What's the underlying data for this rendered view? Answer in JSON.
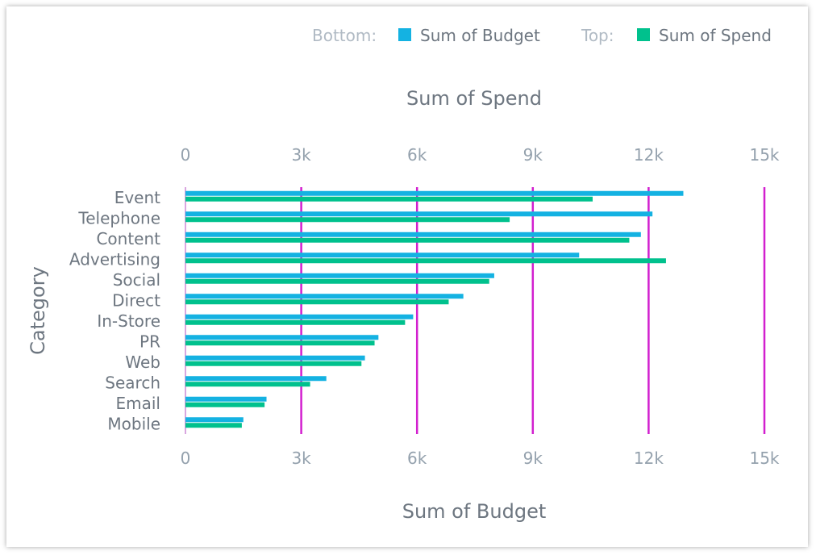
{
  "chart_data": {
    "type": "bar",
    "orientation": "horizontal",
    "categories": [
      "Event",
      "Telephone",
      "Content",
      "Advertising",
      "Social",
      "Direct",
      "In-Store",
      "PR",
      "Web",
      "Search",
      "Email",
      "Mobile"
    ],
    "series": [
      {
        "name": "Sum of Budget",
        "axis": "bottom",
        "color": "#14b2e2",
        "values": [
          12900,
          12100,
          11800,
          10200,
          8000,
          7200,
          5900,
          5000,
          4650,
          3650,
          2100,
          1500
        ]
      },
      {
        "name": "Sum of Spend",
        "axis": "top",
        "color": "#00c18d",
        "values": [
          10550,
          8400,
          11500,
          12450,
          7870,
          6820,
          5690,
          4900,
          4560,
          3230,
          2050,
          1460
        ]
      }
    ],
    "xlabel_top": "Sum of Spend",
    "xlabel_bottom": "Sum of Budget",
    "ylabel": "Category",
    "xlim": [
      0,
      15000
    ],
    "ticks": [
      0,
      3000,
      6000,
      9000,
      12000,
      15000
    ],
    "tick_labels": [
      "0",
      "3k",
      "6k",
      "9k",
      "12k",
      "15k"
    ],
    "grid": true,
    "grid_color": "#d21fcf",
    "legend": {
      "position": "top-right",
      "bottom_prefix": "Bottom:",
      "top_prefix": "Top:",
      "bottom_label": "Sum of Budget",
      "top_label": "Sum of Spend"
    }
  }
}
